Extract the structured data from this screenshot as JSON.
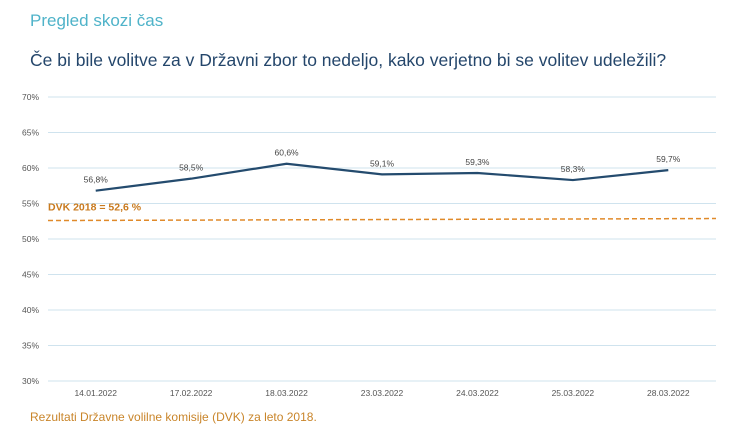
{
  "header": {
    "supertitle": "Pregled skozi čas",
    "title": "Če bi bile volitve za v Državni zbor to nedeljo, kako verjetno bi se volitev udeležili?"
  },
  "footnote": "Rezultati Državne volilne komisije (DVK) za leto 2018.",
  "colors": {
    "line": "#244b6e",
    "reference": "#e08a2a",
    "grid": "#cfe3ee",
    "supertitle": "#4fb3c9",
    "title": "#24466b",
    "footnote": "#c9852a"
  },
  "chart_data": {
    "type": "line",
    "title": "",
    "xlabel": "",
    "ylabel": "",
    "categories": [
      "14.01.2022",
      "17.02.2022",
      "18.03.2022",
      "23.03.2022",
      "24.03.2022",
      "25.03.2022",
      "28.03.2022"
    ],
    "series": [
      {
        "values": [
          56.8,
          58.5,
          60.6,
          59.1,
          59.3,
          58.3,
          59.7
        ],
        "labels": [
          "56,8%",
          "58,5%",
          "60,6%",
          "59,1%",
          "59,3%",
          "58,3%",
          "59,7%"
        ]
      }
    ],
    "reference_line": {
      "value": 52.6,
      "label": "DVK 2018 = 52,6 %",
      "style": "dashed"
    },
    "yticks": [
      70,
      65,
      60,
      55,
      50,
      45,
      40,
      35,
      30
    ],
    "ytick_labels": [
      "70%",
      "65%",
      "60%",
      "55%",
      "50%",
      "45%",
      "40%",
      "35%",
      "30%"
    ],
    "ylim": [
      30,
      70
    ],
    "grid": true,
    "legend": "none"
  }
}
